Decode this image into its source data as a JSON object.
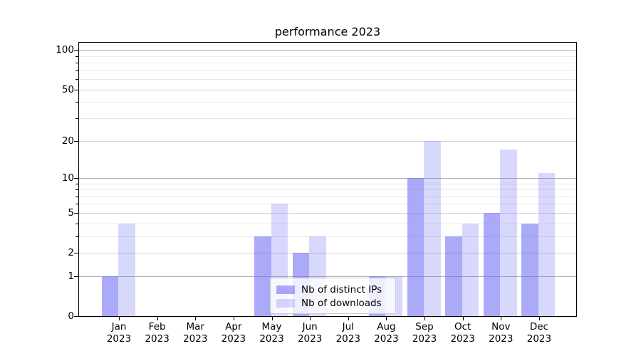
{
  "title": "performance 2023",
  "legend": {
    "items": [
      {
        "label": "Nb of distinct IPs",
        "color": "rgba(106,106,245,0.57)"
      },
      {
        "label": "Nb of downloads",
        "color": "rgba(106,106,245,0.26)"
      }
    ],
    "position": "lower center"
  },
  "x_axis": {
    "months": [
      "Jan",
      "Feb",
      "Mar",
      "Apr",
      "May",
      "Jun",
      "Jul",
      "Aug",
      "Sep",
      "Oct",
      "Nov",
      "Dec"
    ],
    "year": "2023"
  },
  "y_axis": {
    "tick_labels": [
      "0",
      "1",
      "2",
      "5",
      "10",
      "20",
      "50",
      "100"
    ]
  },
  "chart_data": {
    "type": "bar",
    "title": "performance 2023",
    "categories": [
      "Jan 2023",
      "Feb 2023",
      "Mar 2023",
      "Apr 2023",
      "May 2023",
      "Jun 2023",
      "Jul 2023",
      "Aug 2023",
      "Sep 2023",
      "Oct 2023",
      "Nov 2023",
      "Dec 2023"
    ],
    "series": [
      {
        "name": "Nb of distinct IPs",
        "color": "rgba(106,106,245,0.57)",
        "values": [
          1,
          0,
          0,
          0,
          3,
          2,
          0,
          1,
          10,
          3,
          5,
          4
        ]
      },
      {
        "name": "Nb of downloads",
        "color": "rgba(106,106,245,0.26)",
        "values": [
          4,
          0,
          0,
          0,
          6,
          3,
          0,
          1,
          20,
          4,
          17,
          11
        ]
      }
    ],
    "xlabel": "",
    "ylabel": "",
    "yscale": "log1p",
    "ylim": [
      0,
      115
    ],
    "yticks": [
      0,
      1,
      2,
      5,
      10,
      20,
      50,
      100
    ],
    "yticks_minor": [
      3,
      4,
      6,
      7,
      8,
      9,
      30,
      40,
      60,
      70,
      80,
      90
    ],
    "grid": true,
    "legend_position": "lower center"
  },
  "colors": {
    "background": "#ffffff",
    "spine": "#000000",
    "bar_base": "#6a6af5",
    "grid_decade": "#b0b0b0",
    "grid_labeled": "#d2d2d2",
    "grid_minor": "#e9e9e9"
  }
}
